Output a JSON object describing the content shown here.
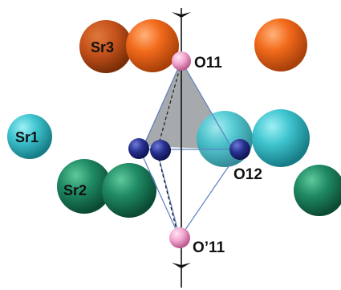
{
  "labels": {
    "sr3": "Sr3",
    "sr1": "Sr1",
    "sr2": "Sr2",
    "o11": "O11",
    "o12": "O12",
    "o11_prime": "O’11"
  },
  "colors": {
    "sr_orange": "#f26a1b",
    "sr_cyan": "#3fc4cf",
    "sr_green": "#1f8a63",
    "o_blue": "#27318f",
    "o_pink": "#f2a6cf",
    "pyramid_fill": "#8d9296",
    "bond_line": "#5d7fbf",
    "axis_line": "#111111"
  }
}
